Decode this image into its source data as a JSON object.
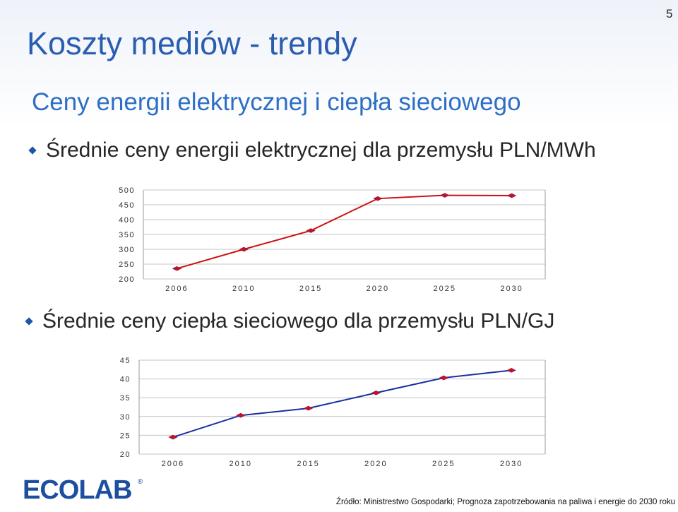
{
  "slide": {
    "number": "5",
    "title": "Koszty mediów - trendy",
    "subtitle": "Ceny energii elektrycznej i ciepła sieciowego",
    "bullet1": "Średnie ceny energii elektrycznej dla przemysłu PLN/MWh",
    "bullet2": "Średnie ceny ciepła sieciowego dla przemysłu PLN/GJ",
    "logo_text": "ECOLAB",
    "logo_mark": "®",
    "source": "Źródło: Ministrestwo Gospodarki; Prognoza zapotrzebowania na paliwa i energie do 2030 roku"
  },
  "colors": {
    "title": "#2a5db0",
    "chart1_line": "#cc1111",
    "chart2_line": "#1a2f9e",
    "marker": "#cc1111",
    "logo": "#1d4fa0"
  },
  "chart_data": [
    {
      "type": "line",
      "categories": [
        "2006",
        "2010",
        "2015",
        "2020",
        "2025",
        "2030"
      ],
      "ylim": [
        200,
        500
      ],
      "yticks": [
        "500",
        "450",
        "400",
        "350",
        "300",
        "250",
        "200"
      ],
      "series": [
        {
          "values": [
            235,
            300,
            363,
            471,
            482,
            481
          ]
        }
      ],
      "grid": true,
      "legend": "none"
    },
    {
      "type": "line",
      "categories": [
        "2006",
        "2010",
        "2015",
        "2020",
        "2025",
        "2030"
      ],
      "ylim": [
        20,
        45
      ],
      "yticks": [
        "45",
        "40",
        "35",
        "30",
        "25",
        "20"
      ],
      "series": [
        {
          "values": [
            24.5,
            30.3,
            32.2,
            36.3,
            40.3,
            42.3
          ]
        }
      ],
      "grid": true,
      "legend": "none"
    }
  ]
}
